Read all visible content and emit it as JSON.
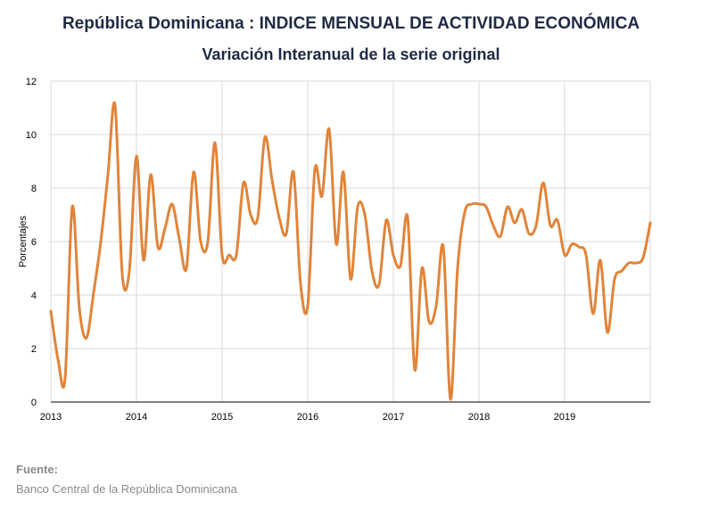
{
  "title": "República Dominicana : INDICE MENSUAL DE ACTIVIDAD ECONÓMICA",
  "subtitle": "Variación Interanual de la serie original",
  "source": {
    "label": "Fuente:",
    "text": "Banco Central de la República Dominicana"
  },
  "colors": {
    "line": "#e0843a",
    "grid": "#d9d9d9",
    "axis": "#000000",
    "title": "#1f2a44"
  },
  "chart_data": {
    "type": "line",
    "title": "República Dominicana : INDICE MENSUAL DE ACTIVIDAD ECONÓMICA",
    "subtitle": "Variación Interanual de la serie original",
    "xlabel": "",
    "ylabel": "Porcentajes",
    "ylim": [
      0,
      12
    ],
    "yticks": [
      0,
      2,
      4,
      6,
      8,
      10,
      12
    ],
    "xticks": [
      "2013",
      "2014",
      "2015",
      "2016",
      "2017",
      "2018",
      "2019"
    ],
    "x_start": "2013-01",
    "x_freq": "monthly",
    "grid": true,
    "legend": "none",
    "series": [
      {
        "values": [
          3.4,
          1.6,
          0.9,
          7.3,
          3.5,
          2.4,
          4.1,
          6.0,
          8.5,
          11.1,
          4.8,
          4.9,
          9.2,
          5.3,
          8.5,
          5.8,
          6.5,
          7.4,
          6.1,
          5.0,
          8.6,
          6.0,
          6.0,
          9.7,
          5.5,
          5.5,
          5.5,
          8.2,
          7.0,
          6.9,
          9.9,
          8.3,
          6.9,
          6.3,
          8.6,
          4.4,
          3.6,
          8.7,
          7.7,
          10.2,
          5.9,
          8.6,
          4.6,
          7.3,
          7.0,
          4.9,
          4.4,
          6.8,
          5.5,
          5.1,
          6.9,
          1.2,
          5.0,
          3.0,
          3.6,
          5.8,
          0.1,
          5.0,
          7.1,
          7.4,
          7.4,
          7.3,
          6.6,
          6.2,
          7.3,
          6.7,
          7.2,
          6.3,
          6.6,
          8.2,
          6.6,
          6.8,
          5.5,
          5.9,
          5.8,
          5.5,
          3.3,
          5.3,
          2.6,
          4.6,
          4.9,
          5.2,
          5.2,
          5.4,
          6.7
        ]
      }
    ]
  }
}
